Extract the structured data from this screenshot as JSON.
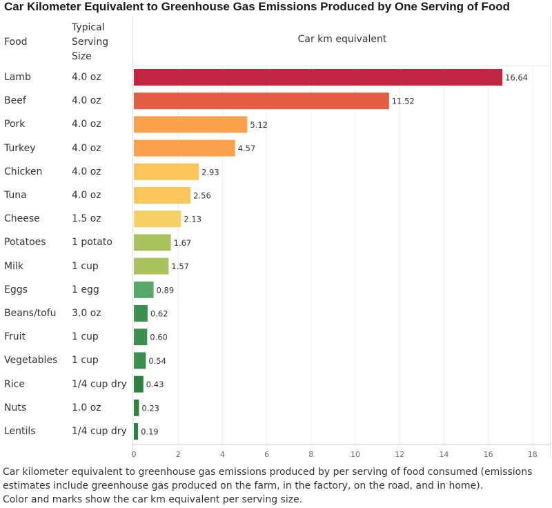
{
  "title": "Car Kilometer Equivalent to Greenhouse Gas Emissions Produced by One Serving of Food",
  "columns": {
    "food": "Food",
    "size_lines": [
      "Typical",
      "Serving",
      "Size"
    ],
    "bar": "Car km equivalent"
  },
  "caption": {
    "line1": "Car kilometer equivalent to greenhouse gas emissions produced by per serving of food consumed (emissions estimates include greenhouse gas produced on the farm, in the factory, on the road, and in home).",
    "line2": "Color and marks show the car km equivalent per serving size."
  },
  "chart_data": {
    "type": "bar",
    "orientation": "horizontal",
    "title": "Car Kilometer Equivalent to Greenhouse Gas Emissions Produced by One Serving of Food",
    "xlabel": "",
    "xlim": [
      0,
      18
    ],
    "xticks": [
      0,
      2,
      4,
      6,
      8,
      10,
      12,
      14,
      16,
      18
    ],
    "grid": true,
    "rows": [
      {
        "food": "Lamb",
        "size": "4.0 oz",
        "value": 16.64,
        "label": "16.64",
        "color": "#c0263f"
      },
      {
        "food": "Beef",
        "size": "4.0 oz",
        "value": 11.52,
        "label": "11.52",
        "color": "#e35e45"
      },
      {
        "food": "Pork",
        "size": "4.0 oz",
        "value": 5.12,
        "label": "5.12",
        "color": "#f9a24b"
      },
      {
        "food": "Turkey",
        "size": "4.0 oz",
        "value": 4.57,
        "label": "4.57",
        "color": "#f9a24b"
      },
      {
        "food": "Chicken",
        "size": "4.0 oz",
        "value": 2.93,
        "label": "2.93",
        "color": "#fac55a"
      },
      {
        "food": "Tuna",
        "size": "4.0 oz",
        "value": 2.56,
        "label": "2.56",
        "color": "#fac55a"
      },
      {
        "food": "Cheese",
        "size": "1.5 oz",
        "value": 2.13,
        "label": "2.13",
        "color": "#f7d065"
      },
      {
        "food": "Potatoes",
        "size": "1 potato",
        "value": 1.67,
        "label": "1.67",
        "color": "#a9c25b"
      },
      {
        "food": "Milk",
        "size": "1 cup",
        "value": 1.57,
        "label": "1.57",
        "color": "#a9c25b"
      },
      {
        "food": "Eggs",
        "size": "1 egg",
        "value": 0.89,
        "label": "0.89",
        "color": "#55a868"
      },
      {
        "food": "Beans/tofu",
        "size": "3.0 oz",
        "value": 0.62,
        "label": "0.62",
        "color": "#3c8f4f"
      },
      {
        "food": "Fruit",
        "size": "1 cup",
        "value": 0.6,
        "label": "0.60",
        "color": "#3c8f4f"
      },
      {
        "food": "Vegetables",
        "size": "1 cup",
        "value": 0.54,
        "label": "0.54",
        "color": "#3c8f4f"
      },
      {
        "food": "Rice",
        "size": "1/4 cup dry",
        "value": 0.43,
        "label": "0.43",
        "color": "#2f8040"
      },
      {
        "food": "Nuts",
        "size": "1.0 oz",
        "value": 0.23,
        "label": "0.23",
        "color": "#2f8040"
      },
      {
        "food": "Lentils",
        "size": "1/4 cup dry",
        "value": 0.19,
        "label": "0.19",
        "color": "#2f8040"
      }
    ]
  }
}
